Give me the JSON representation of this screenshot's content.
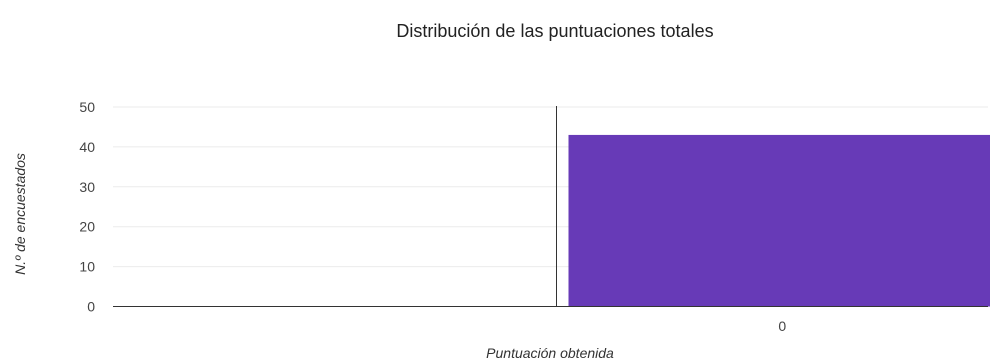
{
  "chart_data": {
    "type": "bar",
    "title": "Distribución de las puntuaciones totales",
    "xlabel": "Puntuación obtenida",
    "ylabel": "N.º de encuestados",
    "categories": [
      "0"
    ],
    "values": [
      43
    ],
    "ylim": [
      0,
      50
    ],
    "yticks": [
      "0",
      "10",
      "20",
      "30",
      "40",
      "50"
    ],
    "grid": true,
    "legend": "none",
    "bar_color": "#673ab7"
  }
}
